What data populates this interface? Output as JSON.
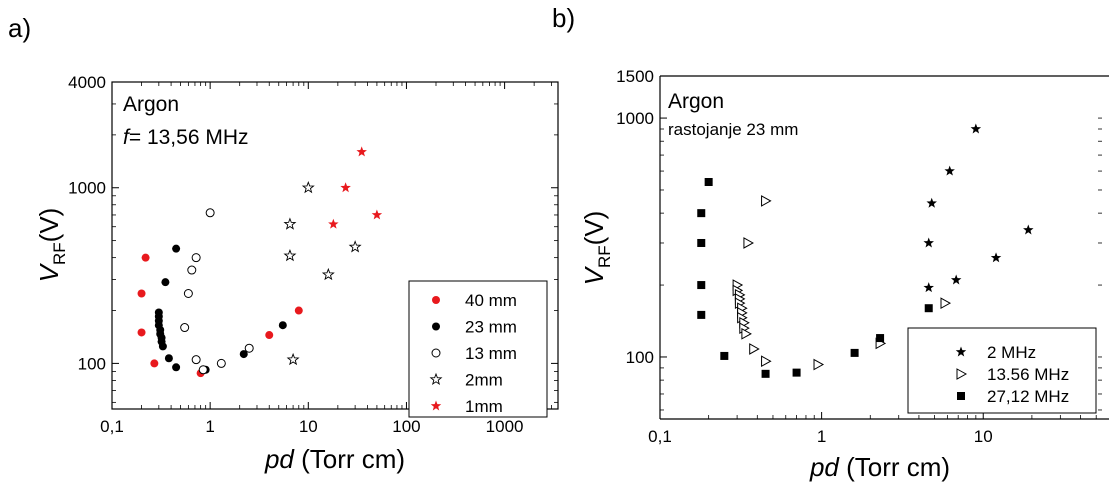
{
  "chart_data": [
    {
      "type": "scatter",
      "panel_label": "a)",
      "annotations": [
        "Argon",
        "f",
        "= 13,56 MHz"
      ],
      "xlabel": {
        "italic": "pd",
        "rest": " (Torr cm)"
      },
      "ylabel": {
        "main": "V",
        "sub": "RF",
        "rest": "(V)"
      },
      "xscale": "log",
      "yscale": "log",
      "xlim": [
        0.1,
        3500
      ],
      "ylim": [
        55,
        4000
      ],
      "x_ticks": [
        0.1,
        1,
        10,
        100,
        1000
      ],
      "x_tick_labels": [
        "0,1",
        "1",
        "10",
        "100",
        "1000"
      ],
      "y_ticks": [
        100,
        1000,
        4000
      ],
      "y_tick_labels": [
        "100",
        "1000",
        "4000"
      ],
      "legend_position": "bottom-right",
      "series": [
        {
          "name": "40 mm",
          "marker": "filled-circle",
          "color": "#e8191d",
          "points": [
            [
              0.2,
              150
            ],
            [
              0.2,
              250
            ],
            [
              0.22,
              400
            ],
            [
              0.27,
              100
            ],
            [
              0.8,
              88
            ],
            [
              4,
              145
            ],
            [
              8,
              200
            ]
          ]
        },
        {
          "name": "23 mm",
          "marker": "filled-circle",
          "color": "#000000",
          "points": [
            [
              0.3,
              195
            ],
            [
              0.3,
              185
            ],
            [
              0.3,
              175
            ],
            [
              0.3,
              165
            ],
            [
              0.31,
              155
            ],
            [
              0.31,
              147
            ],
            [
              0.32,
              140
            ],
            [
              0.32,
              133
            ],
            [
              0.33,
              125
            ],
            [
              0.35,
              290
            ],
            [
              0.38,
              107
            ],
            [
              0.45,
              450
            ],
            [
              0.45,
              95
            ],
            [
              0.9,
              92
            ],
            [
              2.2,
              113
            ],
            [
              5.5,
              165
            ]
          ]
        },
        {
          "name": "13 mm",
          "marker": "open-circle",
          "color": "#000000",
          "points": [
            [
              0.55,
              160
            ],
            [
              0.6,
              250
            ],
            [
              0.65,
              340
            ],
            [
              0.72,
              400
            ],
            [
              0.72,
              105
            ],
            [
              0.85,
              92
            ],
            [
              1.0,
              720
            ],
            [
              1.3,
              100
            ],
            [
              2.5,
              122
            ]
          ]
        },
        {
          "name": "2mm",
          "marker": "open-star",
          "color": "#000000",
          "points": [
            [
              6.5,
              620
            ],
            [
              6.5,
              410
            ],
            [
              7,
              105
            ],
            [
              10,
              1000
            ],
            [
              16,
              320
            ],
            [
              30,
              460
            ]
          ]
        },
        {
          "name": "1mm",
          "marker": "filled-star",
          "color": "#e8191d",
          "points": [
            [
              18,
              620
            ],
            [
              24,
              1000
            ],
            [
              35,
              1600
            ],
            [
              50,
              700
            ]
          ]
        }
      ]
    },
    {
      "type": "scatter",
      "panel_label": "b)",
      "annotations": [
        "Argon",
        "rastojanje 23 mm"
      ],
      "xlabel": {
        "italic": "pd",
        "rest": " (Torr cm)"
      },
      "ylabel": {
        "main": "V",
        "sub": "RF",
        "rest": "(V)"
      },
      "xscale": "log",
      "yscale": "log",
      "xlim": [
        0.1,
        60
      ],
      "ylim": [
        55,
        1500
      ],
      "x_ticks": [
        0.1,
        1,
        10
      ],
      "x_tick_labels": [
        "0,1",
        "1",
        "10"
      ],
      "y_ticks": [
        100,
        1000,
        1500
      ],
      "y_tick_labels": [
        "100",
        "1000",
        "1500"
      ],
      "legend_position": "bottom-right",
      "series": [
        {
          "name": "2 MHz",
          "marker": "filled-star",
          "color": "#000000",
          "points": [
            [
              4.6,
              195
            ],
            [
              4.6,
              300
            ],
            [
              4.8,
              440
            ],
            [
              6.2,
              600
            ],
            [
              6.8,
              210
            ],
            [
              9,
              900
            ],
            [
              12,
              260
            ],
            [
              19,
              340
            ]
          ]
        },
        {
          "name": "13.56 MHz",
          "marker": "open-triangle-right",
          "color": "#000000",
          "points": [
            [
              0.3,
              200
            ],
            [
              0.3,
              190
            ],
            [
              0.31,
              182
            ],
            [
              0.31,
              175
            ],
            [
              0.31,
              168
            ],
            [
              0.32,
              160
            ],
            [
              0.32,
              153
            ],
            [
              0.32,
              146
            ],
            [
              0.33,
              139
            ],
            [
              0.33,
              132
            ],
            [
              0.34,
              125
            ],
            [
              0.35,
              300
            ],
            [
              0.38,
              108
            ],
            [
              0.45,
              450
            ],
            [
              0.45,
              96
            ],
            [
              0.95,
              93
            ],
            [
              2.3,
              114
            ],
            [
              5.8,
              168
            ]
          ]
        },
        {
          "name": "27,12 MHz",
          "marker": "filled-square",
          "color": "#000000",
          "points": [
            [
              0.18,
              400
            ],
            [
              0.18,
              300
            ],
            [
              0.18,
              200
            ],
            [
              0.18,
              150
            ],
            [
              0.2,
              540
            ],
            [
              0.25,
              101
            ],
            [
              0.45,
              85
            ],
            [
              0.7,
              86
            ],
            [
              1.6,
              104
            ],
            [
              2.3,
              120
            ],
            [
              4.6,
              160
            ]
          ]
        }
      ]
    }
  ]
}
